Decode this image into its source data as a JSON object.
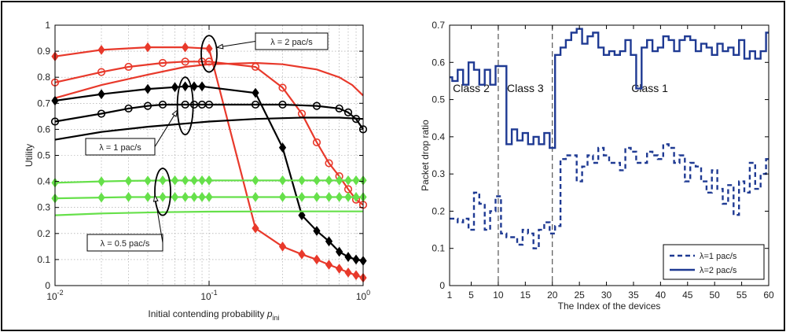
{
  "chart_data": [
    {
      "type": "line",
      "xscale": "log",
      "xlim": [
        0.01,
        1
      ],
      "ylim": [
        0,
        1
      ],
      "grid": true,
      "ylabel": "Utility",
      "xlabel": "Initial contending probability",
      "xlabel_symbol": "p",
      "xlabel_sub": "ini",
      "x_ticks": [
        0.01,
        0.1,
        1
      ],
      "x_tick_base": "10",
      "x_tick_exps": [
        "-2",
        "-1",
        "0"
      ],
      "y_ticks": [
        "0",
        "0.1",
        "0.2",
        "0.3",
        "0.4",
        "0.5",
        "0.6",
        "0.7",
        "0.8",
        "0.9",
        "1"
      ],
      "series": [
        {
          "group": "lambda_2",
          "color": "#e8392b",
          "marker": "diamond",
          "x": [
            0.01,
            0.02,
            0.04,
            0.07,
            0.1,
            0.2,
            0.3,
            0.4,
            0.5,
            0.6,
            0.7,
            0.8,
            0.9,
            1.0
          ],
          "y": [
            0.88,
            0.905,
            0.915,
            0.915,
            0.91,
            0.22,
            0.15,
            0.12,
            0.1,
            0.08,
            0.065,
            0.05,
            0.04,
            0.03
          ]
        },
        {
          "group": "lambda_2",
          "color": "#e8392b",
          "marker": "circle",
          "x": [
            0.01,
            0.02,
            0.03,
            0.05,
            0.07,
            0.09,
            0.1,
            0.2,
            0.3,
            0.4,
            0.5,
            0.6,
            0.7,
            0.8,
            0.9,
            1.0
          ],
          "y": [
            0.78,
            0.82,
            0.84,
            0.855,
            0.86,
            0.86,
            0.86,
            0.84,
            0.76,
            0.66,
            0.55,
            0.47,
            0.42,
            0.37,
            0.33,
            0.31
          ]
        },
        {
          "group": "lambda_2",
          "color": "#e8392b",
          "marker": "none",
          "x": [
            0.01,
            0.02,
            0.04,
            0.07,
            0.1,
            0.2,
            0.3,
            0.5,
            0.7,
            0.85,
            1.0
          ],
          "y": [
            0.72,
            0.77,
            0.81,
            0.84,
            0.85,
            0.855,
            0.85,
            0.83,
            0.8,
            0.77,
            0.73
          ]
        },
        {
          "group": "lambda_1",
          "color": "#000000",
          "marker": "diamond",
          "x": [
            0.01,
            0.02,
            0.04,
            0.06,
            0.07,
            0.08,
            0.09,
            0.2,
            0.3,
            0.4,
            0.5,
            0.6,
            0.7,
            0.8,
            0.9,
            1.0
          ],
          "y": [
            0.71,
            0.735,
            0.755,
            0.762,
            0.765,
            0.765,
            0.765,
            0.74,
            0.53,
            0.27,
            0.21,
            0.17,
            0.13,
            0.11,
            0.1,
            0.095
          ]
        },
        {
          "group": "lambda_1",
          "color": "#000000",
          "marker": "circle",
          "x": [
            0.01,
            0.02,
            0.03,
            0.04,
            0.05,
            0.07,
            0.08,
            0.09,
            0.1,
            0.2,
            0.3,
            0.5,
            0.7,
            0.8,
            0.9,
            1.0
          ],
          "y": [
            0.63,
            0.66,
            0.68,
            0.69,
            0.695,
            0.695,
            0.695,
            0.695,
            0.695,
            0.695,
            0.695,
            0.69,
            0.68,
            0.665,
            0.64,
            0.6
          ]
        },
        {
          "group": "lambda_1",
          "color": "#000000",
          "marker": "none",
          "x": [
            0.01,
            0.02,
            0.04,
            0.1,
            0.2,
            0.4,
            0.7,
            1.0
          ],
          "y": [
            0.56,
            0.59,
            0.61,
            0.63,
            0.64,
            0.645,
            0.645,
            0.64
          ]
        },
        {
          "group": "lambda_0.5",
          "color": "#66e04a",
          "marker": "diamond",
          "x": [
            0.01,
            0.02,
            0.03,
            0.04,
            0.05,
            0.06,
            0.07,
            0.08,
            0.09,
            0.1,
            0.2,
            0.3,
            0.4,
            0.5,
            0.6,
            0.7,
            0.8,
            0.9,
            1.0
          ],
          "y": [
            0.395,
            0.4,
            0.402,
            0.403,
            0.404,
            0.404,
            0.404,
            0.404,
            0.404,
            0.404,
            0.404,
            0.404,
            0.404,
            0.404,
            0.404,
            0.404,
            0.404,
            0.404,
            0.404
          ]
        },
        {
          "group": "lambda_0.5",
          "color": "#66e04a",
          "marker": "diamond",
          "x": [
            0.01,
            0.02,
            0.03,
            0.04,
            0.05,
            0.06,
            0.07,
            0.08,
            0.09,
            0.1,
            0.2,
            0.3,
            0.4,
            0.5,
            0.6,
            0.7,
            0.8,
            0.9,
            1.0
          ],
          "y": [
            0.335,
            0.338,
            0.34,
            0.34,
            0.34,
            0.34,
            0.34,
            0.34,
            0.34,
            0.34,
            0.34,
            0.34,
            0.34,
            0.34,
            0.34,
            0.34,
            0.34,
            0.34,
            0.34
          ]
        },
        {
          "group": "lambda_0.5",
          "color": "#66e04a",
          "marker": "none",
          "x": [
            0.01,
            0.02,
            0.05,
            0.1,
            0.3,
            1.0
          ],
          "y": [
            0.27,
            0.277,
            0.282,
            0.284,
            0.285,
            0.285
          ]
        }
      ],
      "annotations": [
        {
          "text": "λ = 2 pac/s",
          "ellipse_x": 0.1,
          "ellipse_y_range": [
            0.82,
            0.96
          ]
        },
        {
          "text": "λ = 1 pac/s",
          "ellipse_x": 0.07,
          "ellipse_y_range": [
            0.58,
            0.8
          ]
        },
        {
          "text": "λ = 0.5 pac/s",
          "ellipse_x": 0.05,
          "ellipse_y_range": [
            0.27,
            0.45
          ]
        }
      ]
    },
    {
      "type": "line",
      "step": true,
      "xlim": [
        1,
        60
      ],
      "ylim": [
        0,
        0.7
      ],
      "grid": false,
      "xlabel": "The Index of the devices",
      "ylabel": "Packet drop ratio",
      "x_ticks": [
        "1",
        "5",
        "10",
        "15",
        "20",
        "25",
        "30",
        "35",
        "40",
        "45",
        "50",
        "55",
        "60"
      ],
      "y_ticks": [
        "0",
        "0.1",
        "0.2",
        "0.3",
        "0.4",
        "0.5",
        "0.6",
        "0.7"
      ],
      "class_boundaries": [
        10,
        20
      ],
      "class_labels": [
        {
          "text": "Class 2",
          "x": 5,
          "y": 0.52
        },
        {
          "text": "Class 3",
          "x": 15,
          "y": 0.52
        },
        {
          "text": "Class 1",
          "x": 38,
          "y": 0.52
        }
      ],
      "legend_position": "bottom-right",
      "series": [
        {
          "name": "λ=1 pac/s",
          "dashed": true,
          "color": "#1f3a93",
          "values": [
            0.18,
            0.18,
            0.17,
            0.18,
            0.15,
            0.25,
            0.22,
            0.15,
            0.2,
            0.24,
            0.14,
            0.13,
            0.13,
            0.11,
            0.15,
            0.14,
            0.1,
            0.15,
            0.17,
            0.14,
            0.16,
            0.34,
            0.35,
            0.35,
            0.28,
            0.32,
            0.35,
            0.33,
            0.37,
            0.35,
            0.33,
            0.33,
            0.31,
            0.37,
            0.36,
            0.33,
            0.33,
            0.36,
            0.35,
            0.34,
            0.38,
            0.37,
            0.33,
            0.35,
            0.28,
            0.33,
            0.32,
            0.28,
            0.25,
            0.31,
            0.26,
            0.22,
            0.27,
            0.19,
            0.28,
            0.25,
            0.33,
            0.26,
            0.3,
            0.34
          ]
        },
        {
          "name": "λ=2 pac/s",
          "dashed": false,
          "color": "#1f3a93",
          "values": [
            0.56,
            0.55,
            0.58,
            0.54,
            0.6,
            0.58,
            0.54,
            0.58,
            0.54,
            0.59,
            0.59,
            0.38,
            0.42,
            0.39,
            0.41,
            0.38,
            0.4,
            0.38,
            0.41,
            0.37,
            0.62,
            0.64,
            0.66,
            0.68,
            0.69,
            0.65,
            0.67,
            0.68,
            0.64,
            0.62,
            0.63,
            0.62,
            0.63,
            0.66,
            0.62,
            0.53,
            0.64,
            0.66,
            0.63,
            0.64,
            0.67,
            0.66,
            0.63,
            0.66,
            0.67,
            0.66,
            0.63,
            0.65,
            0.64,
            0.62,
            0.65,
            0.63,
            0.64,
            0.62,
            0.66,
            0.61,
            0.63,
            0.61,
            0.63,
            0.68
          ]
        }
      ]
    }
  ]
}
